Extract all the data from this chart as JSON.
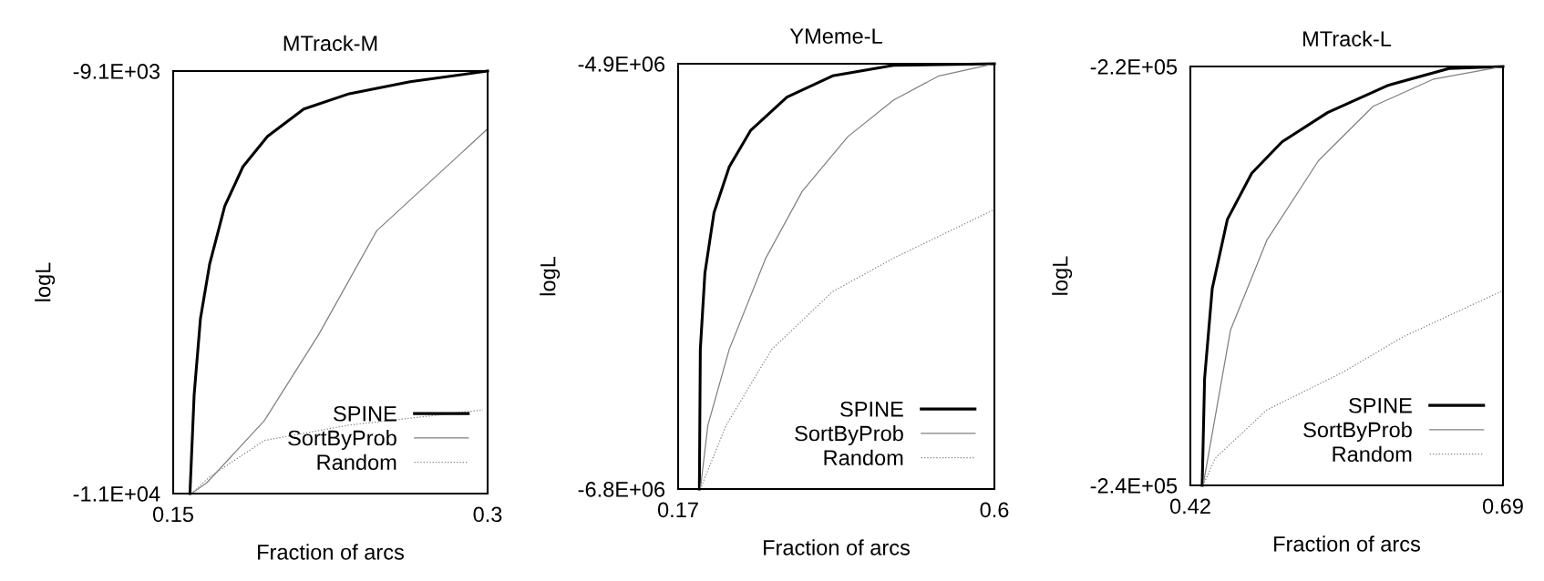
{
  "chart_data": [
    {
      "type": "line",
      "title": "MTrack-M",
      "xlabel": "Fraction of arcs",
      "ylabel": "logL",
      "xlim": [
        0.15,
        0.3
      ],
      "xticks": [
        0.15,
        0.3
      ],
      "ylim": [
        -11000,
        -9100
      ],
      "yticks": [
        {
          "value": -11000,
          "label": "-1.1E+04"
        },
        {
          "value": -9100,
          "label": "-9.1E+03"
        }
      ],
      "legend": "bottom right",
      "series": [
        {
          "name": "SPINE",
          "color": "#000000",
          "line_style": "solid",
          "x": [
            0.158,
            0.16,
            0.163,
            0.1674,
            0.1746,
            0.1833,
            0.195,
            0.2123,
            0.234,
            0.263,
            0.3
          ],
          "values": [
            -11000,
            -10556,
            -10214,
            -9968,
            -9708,
            -9530,
            -9394,
            -9271,
            -9202,
            -9148,
            -9100
          ]
        },
        {
          "name": "SortByProb",
          "color": "#808080",
          "line_style": "solid",
          "x": [
            0.1587,
            0.166,
            0.1935,
            0.2196,
            0.2471,
            0.3
          ],
          "values": [
            -11000,
            -10952,
            -10672,
            -10282,
            -9818,
            -9360
          ]
        },
        {
          "name": "Random",
          "color": "#808080",
          "line_style": "dotted",
          "x": [
            0.1587,
            0.1674,
            0.1935,
            0.234,
            0.2978
          ],
          "values": [
            -11000,
            -10925,
            -10761,
            -10692,
            -10624
          ]
        }
      ]
    },
    {
      "type": "line",
      "title": "YMeme-L",
      "xlabel": "Fraction of arcs",
      "ylabel": "logL",
      "xlim": [
        0.17,
        0.6
      ],
      "xticks": [
        0.17,
        0.6
      ],
      "ylim": [
        -6800000,
        -4900000
      ],
      "yticks": [
        {
          "value": -6800000,
          "label": "-6.8E+06"
        },
        {
          "value": -4900000,
          "label": "-4.9E+06"
        }
      ],
      "legend": "bottom right",
      "series": [
        {
          "name": "SPINE",
          "color": "#000000",
          "line_style": "solid",
          "x": [
            0.1989,
            0.2002,
            0.2064,
            0.2188,
            0.2395,
            0.2684,
            0.318,
            0.38,
            0.4627,
            0.6
          ],
          "values": [
            -6800000,
            -6176000,
            -5836000,
            -5565000,
            -5361000,
            -5199000,
            -5049000,
            -4954000,
            -4907000,
            -4900000
          ]
        },
        {
          "name": "SortByProb",
          "color": "#808080",
          "line_style": "solid",
          "x": [
            0.2002,
            0.2105,
            0.2395,
            0.2891,
            0.3387,
            0.4007,
            0.4627,
            0.5247,
            0.6
          ],
          "values": [
            -6800000,
            -6515000,
            -6176000,
            -5769000,
            -5470000,
            -5226000,
            -5063000,
            -4954000,
            -4900000
          ]
        },
        {
          "name": "Random",
          "color": "#808080",
          "line_style": "dotted",
          "x": [
            0.2002,
            0.2353,
            0.2974,
            0.38,
            0.4627,
            0.6
          ],
          "values": [
            -6800000,
            -6515000,
            -6176000,
            -5918000,
            -5769000,
            -5551000
          ]
        }
      ]
    },
    {
      "type": "line",
      "title": "MTrack-L",
      "xlabel": "Fraction of arcs",
      "ylabel": "logL",
      "xlim": [
        0.42,
        0.69
      ],
      "xticks": [
        0.42,
        0.69
      ],
      "ylim": [
        -240000,
        -220000
      ],
      "yticks": [
        {
          "value": -240000,
          "label": "-2.4E+05"
        },
        {
          "value": -220000,
          "label": "-2.2E+05"
        }
      ],
      "legend": "bottom right",
      "series": [
        {
          "name": "SPINE",
          "color": "#000000",
          "line_style": "solid",
          "x": [
            0.4302,
            0.4323,
            0.4389,
            0.452,
            0.473,
            0.4992,
            0.5385,
            0.5909,
            0.6433,
            0.69
          ],
          "values": [
            -240000,
            -234900,
            -230600,
            -227300,
            -225100,
            -223600,
            -222200,
            -220900,
            -220100,
            -220000
          ]
        },
        {
          "name": "SortByProb",
          "color": "#808080",
          "line_style": "solid",
          "x": [
            0.431,
            0.4546,
            0.486,
            0.5306,
            0.5778,
            0.6302,
            0.69
          ],
          "values": [
            -240000,
            -232600,
            -228300,
            -224500,
            -221900,
            -220600,
            -220000
          ]
        },
        {
          "name": "Random",
          "color": "#808080",
          "line_style": "dotted",
          "x": [
            0.431,
            0.4415,
            0.486,
            0.5516,
            0.604,
            0.69
          ],
          "values": [
            -240000,
            -238700,
            -236400,
            -234600,
            -232900,
            -230700
          ]
        }
      ]
    }
  ]
}
